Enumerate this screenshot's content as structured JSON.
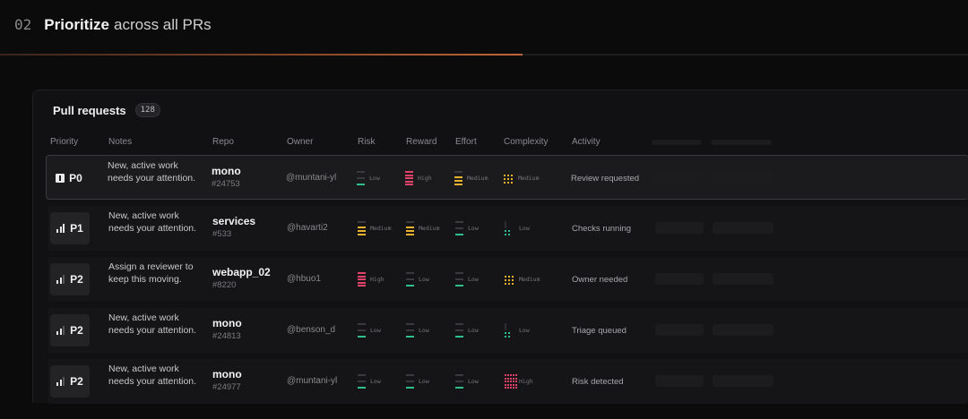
{
  "header": {
    "number": "02",
    "title_bold": "Prioritize",
    "title_rest": "across all PRs"
  },
  "progress": {
    "fraction": 0.54
  },
  "panel": {
    "title": "Pull requests",
    "count": "128",
    "columns": [
      "Priority",
      "Notes",
      "Repo",
      "Owner",
      "Risk",
      "Reward",
      "Effort",
      "Complexity",
      "Activity"
    ]
  },
  "colors": {
    "low": "#2fbf8a",
    "medium": "#e8b22e",
    "high": "#e0426a",
    "track": "#3a3a3e"
  },
  "rows": [
    {
      "priority": "P0",
      "icon": "urgent-icon",
      "bars": 0,
      "notes": "New, active work needs your attention.",
      "repo": "mono",
      "pr": "#24753",
      "owner": "@muntani-yl",
      "risk": "Low",
      "reward": "High",
      "effort": "Medium",
      "complexity": "Medium",
      "activity": "Review requested"
    },
    {
      "priority": "P1",
      "icon": "signal-bars-icon",
      "bars": 3,
      "notes": "New, active work needs your attention.",
      "repo": "services",
      "pr": "#533",
      "owner": "@havarti2",
      "risk": "Medium",
      "reward": "Medium",
      "effort": "Low",
      "complexity": "Low",
      "activity": "Checks running"
    },
    {
      "priority": "P2",
      "icon": "signal-bars-icon",
      "bars": 2,
      "notes": "Assign a reviewer to keep this moving.",
      "repo": "webapp_02",
      "pr": "#8220",
      "owner": "@hbuo1",
      "risk": "High",
      "reward": "Low",
      "effort": "Low",
      "complexity": "Medium",
      "activity": "Owner needed"
    },
    {
      "priority": "P2",
      "icon": "signal-bars-icon",
      "bars": 2,
      "notes": "New, active work needs your attention.",
      "repo": "mono",
      "pr": "#24813",
      "owner": "@benson_d",
      "risk": "Low",
      "reward": "Low",
      "effort": "Low",
      "complexity": "Low",
      "activity": "Triage queued"
    },
    {
      "priority": "P2",
      "icon": "signal-bars-icon",
      "bars": 2,
      "notes": "New, active work needs your attention.",
      "repo": "mono",
      "pr": "#24977",
      "owner": "@muntani-yl",
      "risk": "Low",
      "reward": "Low",
      "effort": "Low",
      "complexity": "High",
      "activity": "Risk detected"
    }
  ]
}
